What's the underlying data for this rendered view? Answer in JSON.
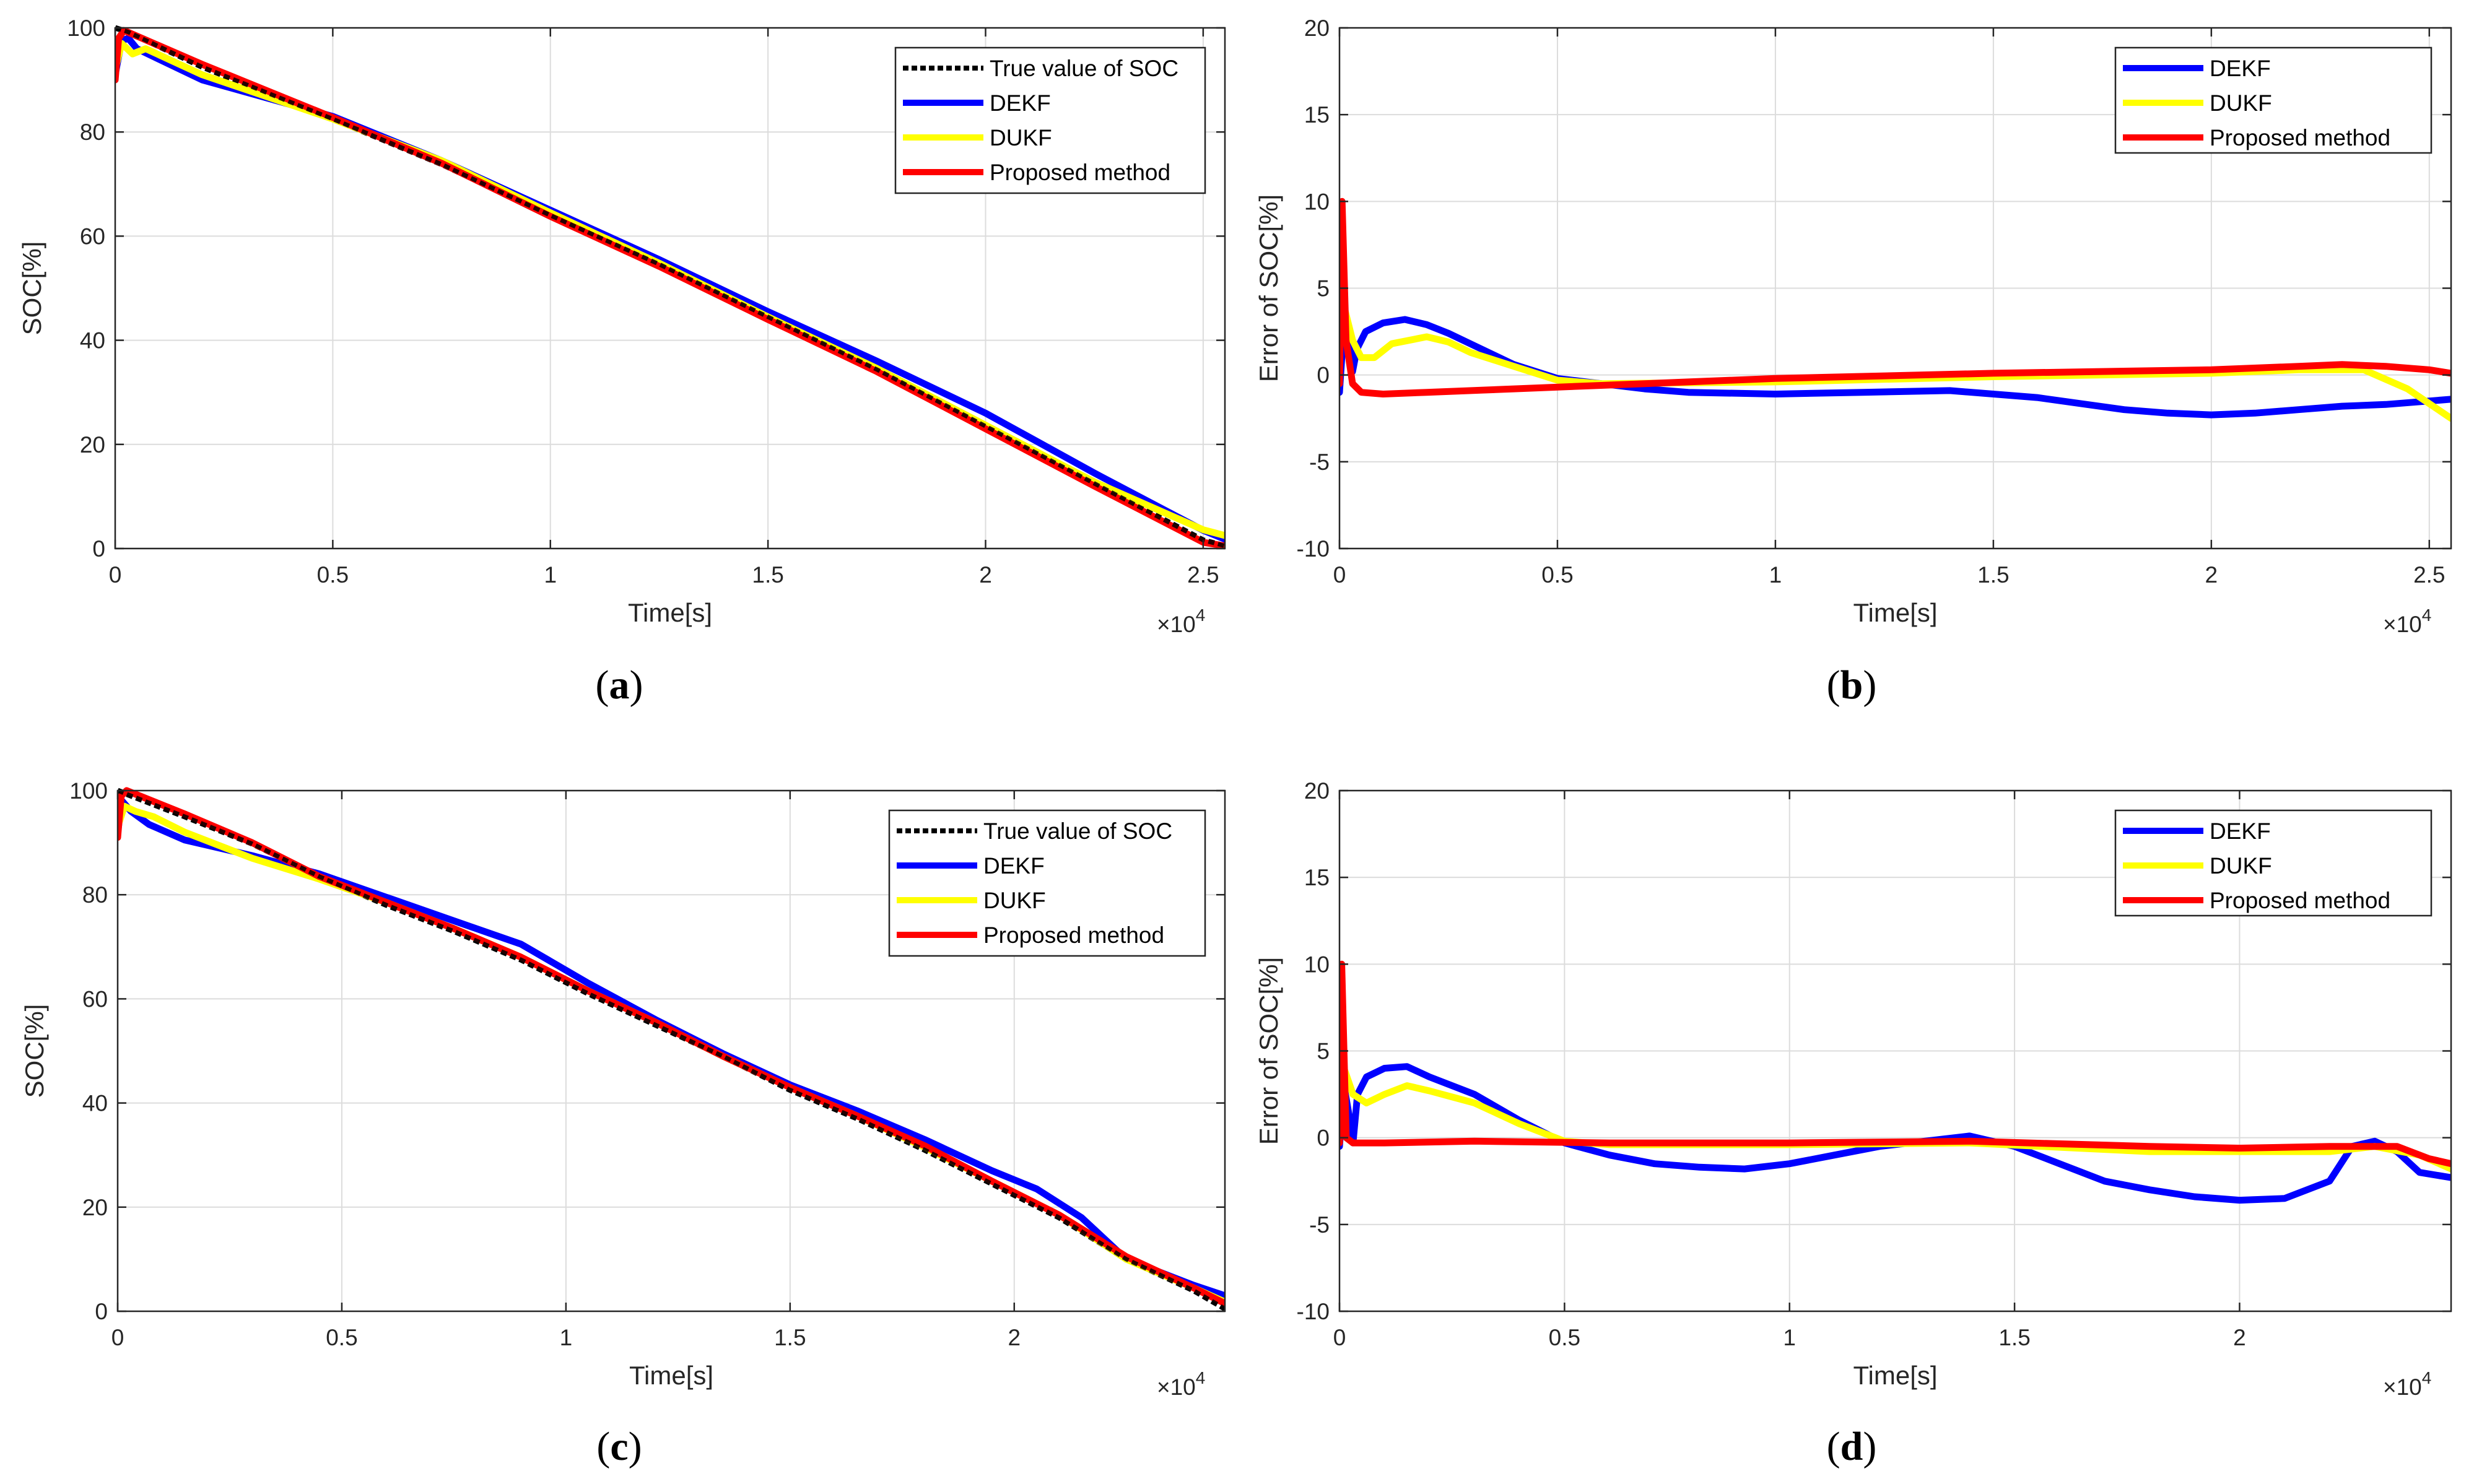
{
  "colors": {
    "true_soc": "#000000",
    "dekf": "#0000ff",
    "dukf": "#ffff00",
    "proposed": "#ff0000",
    "grid": "#dcdcdc",
    "axis": "#262626"
  },
  "exponent": {
    "base": "×10",
    "power": "4"
  },
  "chart_data": [
    {
      "id": "a",
      "caption_letter": "a",
      "type": "line",
      "xlabel": "Time[s]",
      "ylabel": "SOC[%]",
      "xlim": [
        0,
        25500
      ],
      "ylim": [
        0,
        100
      ],
      "xticks": [
        0,
        5000,
        10000,
        15000,
        20000,
        25000
      ],
      "xtick_labels": [
        "0",
        "0.5",
        "1",
        "1.5",
        "2",
        "2.5"
      ],
      "yticks": [
        0,
        20,
        40,
        60,
        80,
        100
      ],
      "ytick_labels": [
        "0",
        "20",
        "40",
        "60",
        "80",
        "100"
      ],
      "legend": {
        "placement": "top-right",
        "entries": [
          "True value of SOC",
          "DEKF",
          "DUKF",
          "Proposed method"
        ]
      },
      "series": [
        {
          "name": "True value of SOC",
          "color_key": "true_soc",
          "dashed": true,
          "x": [
            0,
            300,
            2000,
            5000,
            7500,
            10000,
            12500,
            15000,
            17500,
            20000,
            22500,
            25000,
            25500
          ],
          "y": [
            100,
            99.2,
            92.5,
            82.5,
            73.8,
            64,
            54.6,
            44.5,
            34.4,
            23.5,
            12.5,
            1.6,
            0.5
          ]
        },
        {
          "name": "DEKF",
          "color_key": "dekf",
          "x": [
            0,
            150,
            300,
            500,
            2000,
            5000,
            7500,
            10000,
            12500,
            15000,
            17500,
            20000,
            22500,
            25000,
            25500
          ],
          "y": [
            91,
            97.5,
            98,
            96,
            90,
            83,
            74.5,
            65,
            55.5,
            45.5,
            36,
            26,
            14.5,
            3.5,
            1.8
          ]
        },
        {
          "name": "DUKF",
          "color_key": "dukf",
          "x": [
            0,
            150,
            400,
            700,
            2000,
            5000,
            7500,
            10000,
            12500,
            15000,
            17500,
            20000,
            22500,
            25000,
            25500
          ],
          "y": [
            92,
            97,
            95,
            96,
            91,
            82.5,
            74.5,
            64.5,
            54.8,
            44.5,
            34.6,
            23.7,
            12.8,
            3.6,
            2.5
          ]
        },
        {
          "name": "Proposed method",
          "color_key": "proposed",
          "x": [
            0,
            80,
            200,
            2000,
            5000,
            7500,
            10000,
            12500,
            15000,
            17500,
            20000,
            22500,
            25000,
            25500
          ],
          "y": [
            90,
            98,
            99.5,
            93,
            82.8,
            74,
            63.8,
            54.2,
            44,
            34,
            23,
            12,
            1.2,
            0.5
          ]
        }
      ]
    },
    {
      "id": "b",
      "caption_letter": "b",
      "type": "line",
      "xlabel": "Time[s]",
      "ylabel": "Error of SOC[%]",
      "xlim": [
        0,
        25500
      ],
      "ylim": [
        -10,
        20
      ],
      "xticks": [
        0,
        5000,
        10000,
        15000,
        20000,
        25000
      ],
      "xtick_labels": [
        "0",
        "0.5",
        "1",
        "1.5",
        "2",
        "2.5"
      ],
      "yticks": [
        -10,
        -5,
        0,
        5,
        10,
        15,
        20
      ],
      "ytick_labels": [
        "-10",
        "-5",
        "0",
        "5",
        "10",
        "15",
        "20"
      ],
      "legend": {
        "placement": "top-right",
        "entries": [
          "DEKF",
          "DUKF",
          "Proposed method"
        ]
      },
      "series": [
        {
          "name": "DEKF",
          "color_key": "dekf",
          "x": [
            0,
            100,
            200,
            300,
            400,
            600,
            1000,
            1500,
            2000,
            2500,
            3000,
            4000,
            5000,
            6000,
            7000,
            8000,
            10000,
            12000,
            14000,
            16000,
            18000,
            19000,
            20000,
            21000,
            22000,
            23000,
            24000,
            25000,
            25500
          ],
          "y": [
            -1,
            2.8,
            2.2,
            0.2,
            1.5,
            2.5,
            3,
            3.2,
            2.9,
            2.4,
            1.8,
            0.6,
            -0.2,
            -0.5,
            -0.8,
            -1,
            -1.1,
            -1,
            -0.9,
            -1.3,
            -2,
            -2.2,
            -2.3,
            -2.2,
            -2,
            -1.8,
            -1.7,
            -1.5,
            -1.4
          ]
        },
        {
          "name": "DUKF",
          "color_key": "dukf",
          "x": [
            0,
            100,
            300,
            500,
            800,
            1200,
            2000,
            2500,
            3000,
            4000,
            5000,
            6000,
            10000,
            15000,
            20000,
            22000,
            23500,
            24500,
            25500
          ],
          "y": [
            5,
            4,
            2,
            1,
            1,
            1.8,
            2.2,
            1.9,
            1.3,
            0.5,
            -0.3,
            -0.5,
            -0.4,
            -0.1,
            0.1,
            0.3,
            0.3,
            -0.8,
            -2.5
          ]
        },
        {
          "name": "Proposed method",
          "color_key": "proposed",
          "x": [
            0,
            60,
            150,
            300,
            500,
            1000,
            2000,
            4000,
            6000,
            8000,
            10000,
            15000,
            20000,
            22000,
            23000,
            24000,
            25000,
            25500
          ],
          "y": [
            -0.5,
            10,
            2,
            -0.5,
            -1,
            -1.1,
            -1,
            -0.8,
            -0.6,
            -0.4,
            -0.2,
            0.1,
            0.3,
            0.5,
            0.6,
            0.5,
            0.3,
            0.1
          ]
        }
      ]
    },
    {
      "id": "c",
      "caption_letter": "c",
      "type": "line",
      "xlabel": "Time[s]",
      "ylabel": "SOC[%]",
      "xlim": [
        0,
        24700
      ],
      "ylim": [
        0,
        100
      ],
      "xticks": [
        0,
        5000,
        10000,
        15000,
        20000
      ],
      "xtick_labels": [
        "0",
        "0.5",
        "1",
        "1.5",
        "2"
      ],
      "yticks": [
        0,
        20,
        40,
        60,
        80,
        100
      ],
      "ytick_labels": [
        "0",
        "20",
        "40",
        "60",
        "80",
        "100"
      ],
      "legend": {
        "placement": "top-right",
        "entries": [
          "True value of SOC",
          "DEKF",
          "DUKF",
          "Proposed method"
        ]
      },
      "series": [
        {
          "name": "True value of SOC",
          "color_key": "true_soc",
          "dashed": true,
          "x": [
            0,
            300,
            1500,
            3000,
            4500,
            6000,
            7500,
            9000,
            10500,
            12000,
            13500,
            15000,
            16500,
            18000,
            19500,
            21000,
            22500,
            24000,
            24700
          ],
          "y": [
            100,
            99,
            95,
            89.8,
            83.5,
            78,
            73,
            67.5,
            61,
            55,
            49,
            42.5,
            37,
            31,
            24.5,
            18,
            10,
            4,
            0.5
          ]
        },
        {
          "name": "DEKF",
          "color_key": "dekf",
          "x": [
            0,
            100,
            300,
            700,
            1500,
            3000,
            4500,
            6000,
            7500,
            9000,
            10500,
            12000,
            13500,
            15000,
            16500,
            18000,
            19500,
            20500,
            21500,
            22500,
            24000,
            24700
          ],
          "y": [
            92,
            98,
            96,
            93.5,
            90.5,
            87.5,
            84,
            79.5,
            75,
            70.5,
            63,
            56,
            49.5,
            43.5,
            38.5,
            33,
            27,
            23.5,
            18,
            10,
            5,
            3
          ]
        },
        {
          "name": "DUKF",
          "color_key": "dukf",
          "x": [
            0,
            150,
            400,
            800,
            1500,
            3000,
            4500,
            6000,
            7500,
            9000,
            10500,
            12000,
            13500,
            15000,
            16500,
            18000,
            19500,
            21000,
            22500,
            24000,
            24700
          ],
          "y": [
            93,
            97,
            96,
            95,
            92,
            87,
            83,
            78.5,
            73.5,
            68,
            61.5,
            55.5,
            49,
            43,
            37.5,
            31.5,
            25,
            18.5,
            10,
            4.5,
            1.8
          ]
        },
        {
          "name": "Proposed method",
          "color_key": "proposed",
          "x": [
            0,
            80,
            200,
            1500,
            3000,
            4500,
            6000,
            7500,
            9000,
            10500,
            12000,
            13500,
            15000,
            16500,
            18000,
            19500,
            21000,
            22500,
            24000,
            24700
          ],
          "y": [
            91,
            99,
            100,
            95.5,
            90,
            83.5,
            78.5,
            73.5,
            68,
            61.5,
            55.5,
            49,
            43,
            37.5,
            31.8,
            25,
            18.5,
            10.5,
            4.5,
            1.5
          ]
        }
      ]
    },
    {
      "id": "d",
      "caption_letter": "d",
      "type": "line",
      "xlabel": "Time[s]",
      "ylabel": "Error of SOC[%]",
      "xlim": [
        0,
        24700
      ],
      "ylim": [
        -10,
        20
      ],
      "xticks": [
        0,
        5000,
        10000,
        15000,
        20000
      ],
      "xtick_labels": [
        "0",
        "0.5",
        "1",
        "1.5",
        "2"
      ],
      "yticks": [
        -10,
        -5,
        0,
        5,
        10,
        15,
        20
      ],
      "ytick_labels": [
        "-10",
        "-5",
        "0",
        "5",
        "10",
        "15",
        "20"
      ],
      "legend": {
        "placement": "top-right",
        "entries": [
          "DEKF",
          "DUKF",
          "Proposed method"
        ]
      },
      "series": [
        {
          "name": "DEKF",
          "color_key": "dekf",
          "x": [
            0,
            100,
            200,
            300,
            400,
            600,
            1000,
            1500,
            2000,
            3000,
            4000,
            5000,
            6000,
            7000,
            8000,
            9000,
            10000,
            11000,
            12000,
            13000,
            14000,
            15000,
            16000,
            17000,
            18000,
            19000,
            20000,
            21000,
            22000,
            22500,
            23000,
            23500,
            24000,
            24700
          ],
          "y": [
            -0.5,
            3,
            1.5,
            -0.3,
            2.5,
            3.5,
            4,
            4.1,
            3.5,
            2.5,
            1,
            -0.3,
            -1,
            -1.5,
            -1.7,
            -1.8,
            -1.5,
            -1,
            -0.5,
            -0.2,
            0.1,
            -0.5,
            -1.5,
            -2.5,
            -3,
            -3.4,
            -3.6,
            -3.5,
            -2.5,
            -0.5,
            -0.2,
            -0.8,
            -2,
            -2.3
          ]
        },
        {
          "name": "DUKF",
          "color_key": "dukf",
          "x": [
            0,
            100,
            300,
            600,
            1000,
            1500,
            2000,
            3000,
            4000,
            5000,
            6000,
            10000,
            14000,
            18000,
            22000,
            23000,
            24000,
            24700
          ],
          "y": [
            8,
            4,
            2.5,
            2,
            2.5,
            3,
            2.7,
            2,
            0.8,
            -0.2,
            -0.4,
            -0.4,
            -0.3,
            -0.8,
            -0.8,
            -0.5,
            -1,
            -1.8
          ]
        },
        {
          "name": "Proposed method",
          "color_key": "proposed",
          "x": [
            0,
            50,
            150,
            300,
            1000,
            3000,
            6000,
            10000,
            14000,
            18000,
            20000,
            22000,
            23500,
            24200,
            24700
          ],
          "y": [
            -0.3,
            10,
            0,
            -0.3,
            -0.3,
            -0.2,
            -0.3,
            -0.3,
            -0.2,
            -0.5,
            -0.6,
            -0.5,
            -0.5,
            -1.2,
            -1.5
          ]
        }
      ]
    }
  ]
}
